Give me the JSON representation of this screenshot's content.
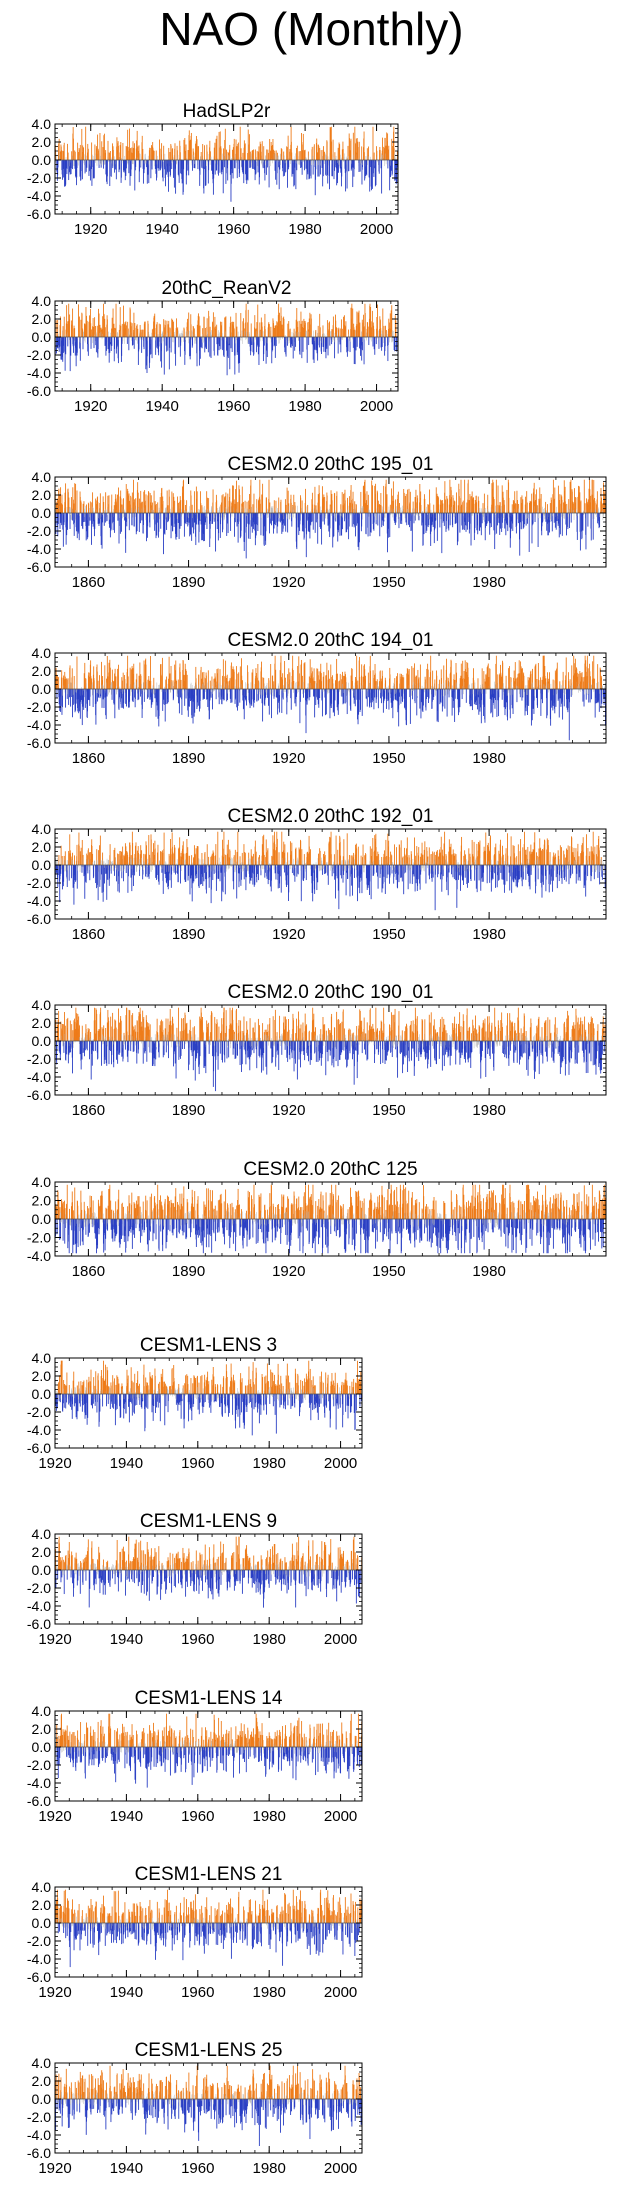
{
  "title": "NAO (Monthly)",
  "colors": {
    "positive": "#ee7c1a",
    "negative": "#2a3fc4",
    "noise": "#b8b8b8",
    "axis": "#000000"
  },
  "chart_data": [
    {
      "type": "bar",
      "title": "HadSLP2r",
      "x_range": [
        1910,
        2005
      ],
      "ylim": [
        -6.0,
        4.0
      ],
      "yticks": [
        "4.0",
        "2.0",
        "0.0",
        "-2.0",
        "-4.0",
        "-6.0"
      ],
      "xticks": [
        "1920",
        "1940",
        "1960",
        "1980",
        "2000"
      ],
      "xtick_values": [
        1920,
        1940,
        1960,
        1980,
        2000
      ],
      "amplitude": 1.4,
      "seed": 11
    },
    {
      "type": "bar",
      "title": "20thC_ReanV2",
      "x_range": [
        1910,
        2005
      ],
      "ylim": [
        -6.0,
        4.0
      ],
      "yticks": [
        "4.0",
        "2.0",
        "0.0",
        "-2.0",
        "-4.0",
        "-6.0"
      ],
      "xticks": [
        "1920",
        "1940",
        "1960",
        "1980",
        "2000"
      ],
      "xtick_values": [
        1920,
        1940,
        1960,
        1980,
        2000
      ],
      "amplitude": 1.4,
      "seed": 23
    },
    {
      "type": "bar",
      "title": "CESM2.0 20thC 195_01",
      "x_range": [
        1850,
        2014
      ],
      "ylim": [
        -6.0,
        4.0
      ],
      "yticks": [
        "4.0",
        "2.0",
        "0.0",
        "-2.0",
        "-4.0",
        "-6.0"
      ],
      "xticks": [
        "1860",
        "1890",
        "1920",
        "1950",
        "1980"
      ],
      "xtick_values": [
        1860,
        1890,
        1920,
        1950,
        1980
      ],
      "amplitude": 1.5,
      "seed": 37
    },
    {
      "type": "bar",
      "title": "CESM2.0 20thC 194_01",
      "x_range": [
        1850,
        2014
      ],
      "ylim": [
        -6.0,
        4.0
      ],
      "yticks": [
        "4.0",
        "2.0",
        "0.0",
        "-2.0",
        "-4.0",
        "-6.0"
      ],
      "xticks": [
        "1860",
        "1890",
        "1920",
        "1950",
        "1980"
      ],
      "xtick_values": [
        1860,
        1890,
        1920,
        1950,
        1980
      ],
      "amplitude": 1.5,
      "seed": 41
    },
    {
      "type": "bar",
      "title": "CESM2.0 20thC 192_01",
      "x_range": [
        1850,
        2014
      ],
      "ylim": [
        -6.0,
        4.0
      ],
      "yticks": [
        "4.0",
        "2.0",
        "0.0",
        "-2.0",
        "-4.0",
        "-6.0"
      ],
      "xticks": [
        "1860",
        "1890",
        "1920",
        "1950",
        "1980"
      ],
      "xtick_values": [
        1860,
        1890,
        1920,
        1950,
        1980
      ],
      "amplitude": 1.5,
      "seed": 53
    },
    {
      "type": "bar",
      "title": "CESM2.0 20thC 190_01",
      "x_range": [
        1850,
        2014
      ],
      "ylim": [
        -6.0,
        4.0
      ],
      "yticks": [
        "4.0",
        "2.0",
        "0.0",
        "-2.0",
        "-4.0",
        "-6.0"
      ],
      "xticks": [
        "1860",
        "1890",
        "1920",
        "1950",
        "1980"
      ],
      "xtick_values": [
        1860,
        1890,
        1920,
        1950,
        1980
      ],
      "amplitude": 1.5,
      "seed": 67
    },
    {
      "type": "bar",
      "title": "CESM2.0 20thC 125",
      "x_range": [
        1850,
        2014
      ],
      "ylim": [
        -4.0,
        4.0
      ],
      "yticks": [
        "4.0",
        "2.0",
        "0.0",
        "-2.0",
        "-4.0"
      ],
      "xticks": [
        "1860",
        "1890",
        "1920",
        "1950",
        "1980"
      ],
      "xtick_values": [
        1860,
        1890,
        1920,
        1950,
        1980
      ],
      "amplitude": 1.6,
      "seed": 79
    },
    {
      "type": "bar",
      "title": "CESM1-LENS 3",
      "x_range": [
        1920,
        2005
      ],
      "ylim": [
        -6.0,
        4.0
      ],
      "yticks": [
        "4.0",
        "2.0",
        "0.0",
        "-2.0",
        "-4.0",
        "-6.0"
      ],
      "xticks": [
        "1920",
        "1940",
        "1960",
        "1980",
        "2000"
      ],
      "xtick_values": [
        1920,
        1940,
        1960,
        1980,
        2000
      ],
      "amplitude": 1.4,
      "seed": 83
    },
    {
      "type": "bar",
      "title": "CESM1-LENS 9",
      "x_range": [
        1920,
        2005
      ],
      "ylim": [
        -6.0,
        4.0
      ],
      "yticks": [
        "4.0",
        "2.0",
        "0.0",
        "-2.0",
        "-4.0",
        "-6.0"
      ],
      "xticks": [
        "1920",
        "1940",
        "1960",
        "1980",
        "2000"
      ],
      "xtick_values": [
        1920,
        1940,
        1960,
        1980,
        2000
      ],
      "amplitude": 1.4,
      "seed": 97
    },
    {
      "type": "bar",
      "title": "CESM1-LENS 14",
      "x_range": [
        1920,
        2005
      ],
      "ylim": [
        -6.0,
        4.0
      ],
      "yticks": [
        "4.0",
        "2.0",
        "0.0",
        "-2.0",
        "-4.0",
        "-6.0"
      ],
      "xticks": [
        "1920",
        "1940",
        "1960",
        "1980",
        "2000"
      ],
      "xtick_values": [
        1920,
        1940,
        1960,
        1980,
        2000
      ],
      "amplitude": 1.4,
      "seed": 101
    },
    {
      "type": "bar",
      "title": "CESM1-LENS 21",
      "x_range": [
        1920,
        2005
      ],
      "ylim": [
        -6.0,
        4.0
      ],
      "yticks": [
        "4.0",
        "2.0",
        "0.0",
        "-2.0",
        "-4.0",
        "-6.0"
      ],
      "xticks": [
        "1920",
        "1940",
        "1960",
        "1980",
        "2000"
      ],
      "xtick_values": [
        1920,
        1940,
        1960,
        1980,
        2000
      ],
      "amplitude": 1.4,
      "seed": 113
    },
    {
      "type": "bar",
      "title": "CESM1-LENS 25",
      "x_range": [
        1920,
        2005
      ],
      "ylim": [
        -6.0,
        4.0
      ],
      "yticks": [
        "4.0",
        "2.0",
        "0.0",
        "-2.0",
        "-4.0",
        "-6.0"
      ],
      "xticks": [
        "1920",
        "1940",
        "1960",
        "1980",
        "2000"
      ],
      "xtick_values": [
        1920,
        1940,
        1960,
        1980,
        2000
      ],
      "amplitude": 1.4,
      "seed": 127
    }
  ]
}
